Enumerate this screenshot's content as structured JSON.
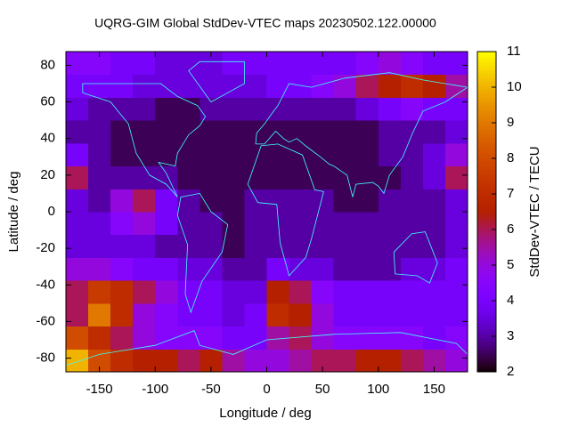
{
  "chart_data": {
    "type": "heatmap",
    "title": "UQRG-GIM Global StdDev-VTEC maps 20230502.122.00000",
    "xlabel": "Longitude / deg",
    "ylabel": "Latitude / deg",
    "colorbar_label": "StdDev-VTEC / TECU",
    "xbins": [
      -180,
      -160,
      -140,
      -120,
      -100,
      -80,
      -60,
      -40,
      -20,
      0,
      20,
      40,
      60,
      80,
      100,
      120,
      140,
      160,
      180
    ],
    "ybins": [
      -87.5,
      -75,
      -62.5,
      -50,
      -37.5,
      -25,
      -12.5,
      0,
      12.5,
      25,
      37.5,
      50,
      62.5,
      75,
      87.5
    ],
    "z": [
      [
        10,
        8,
        7,
        6.5,
        6.5,
        6,
        6.5,
        5.5,
        5,
        5,
        5.5,
        6,
        6,
        6.5,
        6.5,
        6,
        5.5,
        5
      ],
      [
        8,
        7,
        6,
        5,
        4.5,
        4.5,
        4.5,
        4,
        4,
        5.5,
        6,
        5,
        4.5,
        4.5,
        4.5,
        4.5,
        4,
        4.5
      ],
      [
        6,
        9,
        7,
        5,
        4.5,
        4,
        4,
        3.5,
        4,
        7,
        6.5,
        5,
        4,
        4,
        4,
        4,
        4,
        4
      ],
      [
        6,
        7.5,
        7,
        6,
        5,
        4,
        4,
        3.5,
        3.5,
        6.5,
        6,
        4.5,
        4,
        4,
        4,
        4,
        4,
        4
      ],
      [
        5,
        5,
        4.5,
        4,
        4,
        3.5,
        3.5,
        3,
        3,
        4,
        3.5,
        3.5,
        3,
        3,
        3,
        3.5,
        3.5,
        4
      ],
      [
        3.5,
        3.5,
        3.5,
        3.5,
        3,
        3,
        3,
        2.5,
        3,
        3,
        3,
        3,
        3,
        3,
        3,
        3,
        3,
        3.5
      ],
      [
        3.5,
        3.5,
        4.5,
        5,
        4,
        3,
        3,
        2.5,
        3,
        3,
        3,
        3,
        3,
        3,
        3,
        3,
        3,
        3.5
      ],
      [
        3.5,
        3,
        5,
        6,
        4,
        3,
        2.5,
        2.5,
        3,
        3,
        3,
        3,
        2.5,
        2.5,
        3,
        3,
        3,
        3.5
      ],
      [
        6,
        3,
        3,
        3,
        3,
        2.5,
        2.5,
        2.5,
        2.5,
        2.5,
        2.5,
        2.5,
        2.5,
        2.5,
        2.5,
        3,
        3.5,
        6
      ],
      [
        4,
        3,
        2.5,
        2.5,
        2.5,
        2.5,
        2.5,
        2.5,
        2.5,
        2.5,
        2.5,
        2.5,
        2.5,
        2.5,
        3,
        3,
        3.5,
        5
      ],
      [
        3,
        3,
        2.5,
        2.5,
        2.5,
        2.5,
        2.5,
        2.5,
        2.5,
        2.5,
        2.5,
        2.5,
        2.5,
        2.5,
        3,
        3,
        3,
        3.5
      ],
      [
        3.5,
        3,
        3,
        3,
        2.5,
        2.5,
        3,
        3,
        3,
        3,
        3,
        3,
        3,
        3.5,
        4,
        4.5,
        4,
        4
      ],
      [
        4,
        4,
        4,
        3.5,
        3.5,
        3.5,
        3.5,
        3.5,
        3.5,
        4,
        4,
        4.5,
        5,
        6,
        6.5,
        7,
        6.5,
        5.5
      ],
      [
        4.5,
        4.5,
        4,
        4,
        3.5,
        3.5,
        3.5,
        4,
        4,
        4,
        4,
        4,
        4,
        4.5,
        5,
        4.5,
        4,
        4
      ]
    ],
    "xlim": [
      -180,
      180
    ],
    "ylim": [
      -87.5,
      87.5
    ],
    "xticks": [
      -150,
      -100,
      -50,
      0,
      50,
      100,
      150
    ],
    "yticks": [
      -80,
      -60,
      -40,
      -20,
      0,
      20,
      40,
      60,
      80
    ],
    "clim": [
      2,
      11
    ],
    "cticks": [
      2,
      3,
      4,
      5,
      6,
      7,
      8,
      9,
      10,
      11
    ],
    "colormap": "gnuplot"
  }
}
